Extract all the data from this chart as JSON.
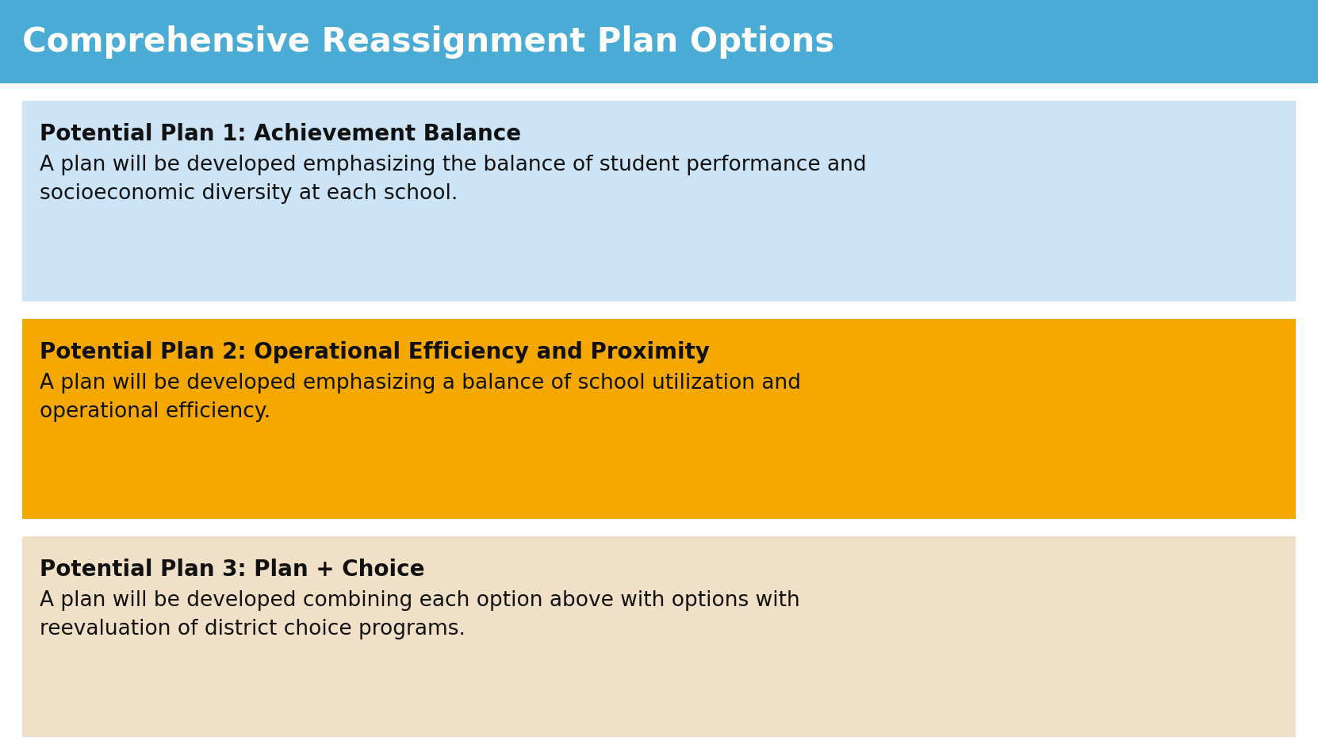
{
  "title": "Comprehensive Reassignment Plan Options",
  "title_bg_color": "#4aacd4",
  "title_text_color": "#ffffff",
  "slide_bg_color": "#ffffff",
  "plans": [
    {
      "box_color": "#cce4f5",
      "heading": "Potential Plan 1: Achievement Balance",
      "body": "A plan will be developed emphasizing the balance of student performance and\nsocioeconomic diversity at each school."
    },
    {
      "box_color": "#f5a800",
      "heading": "Potential Plan 2: Operational Efficiency and Proximity",
      "body": "A plan will be developed emphasizing a balance of school utilization and\noperational efficiency."
    },
    {
      "box_color": "#f0e0c8",
      "heading": "Potential Plan 3: Plan + Choice",
      "body": "A plan will be developed combining each option above with options with\nreevaluation of district choice programs."
    }
  ],
  "heading_fontsize": 20,
  "body_fontsize": 19,
  "title_fontsize": 30,
  "fig_width": 16.62,
  "fig_height": 9.34,
  "dpi": 100
}
